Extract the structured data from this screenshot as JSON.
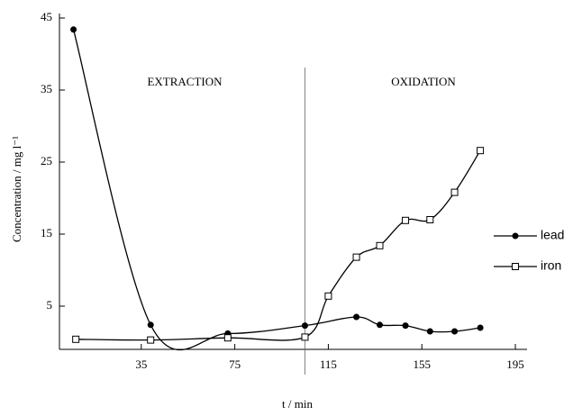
{
  "chart_data": {
    "type": "line",
    "x_label": "t / min",
    "y_label": "Concentration / mg l⁻¹",
    "annotations": [
      "EXTRACTION",
      "OXIDATION"
    ],
    "phase_boundary": 105,
    "xlim": [
      0,
      200
    ],
    "ylim": [
      -1,
      45
    ],
    "xticks": [
      35,
      75,
      115,
      155,
      195
    ],
    "yticks": [
      5,
      15,
      25,
      35,
      45
    ],
    "legend": "right",
    "series": [
      {
        "name": "lead",
        "color": "#000000",
        "marker": "filled-circle",
        "x": [
          6,
          39,
          72,
          105,
          127,
          137,
          148,
          158.5,
          169,
          180
        ],
        "values": [
          43.4,
          2.4,
          1.2,
          2.3,
          3.5,
          2.4,
          2.3,
          1.5,
          1.5,
          2.0
        ]
      },
      {
        "name": "iron",
        "color": "#000000",
        "marker": "open-square",
        "x": [
          7,
          39,
          72,
          105,
          115,
          127,
          137,
          148,
          158.5,
          169,
          180
        ],
        "values": [
          0.4,
          0.3,
          0.6,
          0.7,
          6.4,
          11.8,
          13.4,
          16.9,
          17.0,
          20.8,
          26.6
        ]
      }
    ]
  }
}
